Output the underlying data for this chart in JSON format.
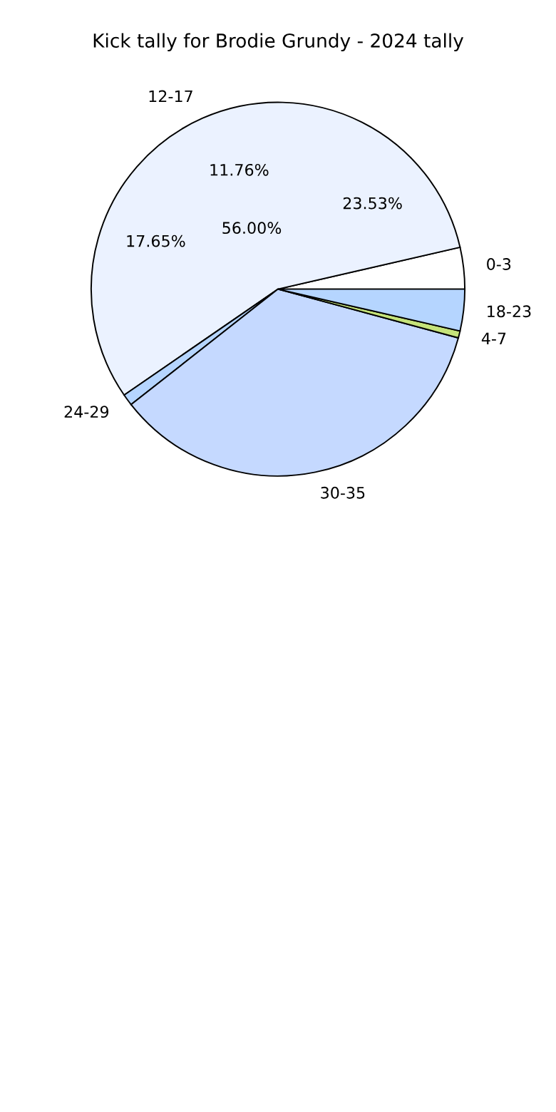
{
  "chart_data": {
    "type": "pie",
    "title": "Kick tally for Brodie Grundy - 2024 tally",
    "categories": [
      "0-3",
      "12-17",
      "24-29",
      "30-35",
      "4-7",
      "18-23"
    ],
    "values": [
      3.6,
      56.0,
      1.0,
      35.2,
      0.6,
      3.6
    ],
    "colors": [
      "#ffffff",
      "#ebf2ff",
      "#b5d5ff",
      "#c5d9ff",
      "#c5e37a",
      "#b5d5ff"
    ],
    "value_labels": [
      null,
      "56.00%",
      null,
      null,
      null,
      null
    ],
    "annotations": [
      "11.76%",
      "23.53%",
      "17.65%"
    ],
    "legend": false
  }
}
